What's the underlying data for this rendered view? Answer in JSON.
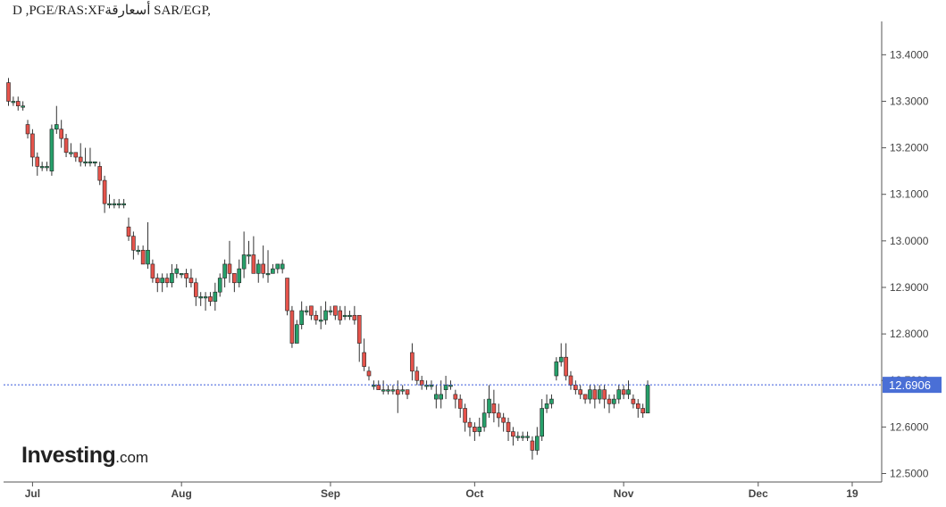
{
  "header": {
    "title": "D ,PGE/RAS:XFأسعارقة SAR/EGP,"
  },
  "branding": {
    "logo_main": "Investing",
    "logo_domain": ".com"
  },
  "colors": {
    "up": "#26a06a",
    "down": "#e5534b",
    "last_price_line": "#3b5bdb",
    "last_price_label_bg": "#4a6fd6",
    "axis_text": "#444444",
    "axis_line": "#555555"
  },
  "chart_data": {
    "type": "candlestick",
    "interval": "D",
    "ylim": [
      12.47,
      13.47
    ],
    "y_ticks": [
      "13.4000",
      "13.3000",
      "13.2000",
      "13.1000",
      "13.0000",
      "12.9000",
      "12.8000",
      "12.7000",
      "12.6000",
      "12.5000"
    ],
    "y_tick_values": [
      13.4,
      13.3,
      13.2,
      13.1,
      13.0,
      12.9,
      12.8,
      12.7,
      12.6,
      12.5
    ],
    "x_ticks": [
      {
        "label": "Jul",
        "index": 5
      },
      {
        "label": "Aug",
        "index": 36
      },
      {
        "label": "Sep",
        "index": 67
      },
      {
        "label": "Oct",
        "index": 97
      },
      {
        "label": "Nov",
        "index": 128
      },
      {
        "label": "Dec",
        "index": 156
      },
      {
        "label": "19",
        "index": 175
      }
    ],
    "last_price": 12.6906,
    "last_price_label": "12.6906",
    "candles": [
      [
        13.34,
        13.3,
        13.35,
        13.29
      ],
      [
        13.3,
        13.3,
        13.31,
        13.29
      ],
      [
        13.3,
        13.29,
        13.31,
        13.28
      ],
      [
        13.29,
        13.29,
        13.3,
        13.28
      ],
      [
        13.25,
        13.23,
        13.26,
        13.22
      ],
      [
        13.23,
        13.18,
        13.24,
        13.16
      ],
      [
        13.18,
        13.16,
        13.19,
        13.14
      ],
      [
        13.16,
        13.16,
        13.17,
        13.15
      ],
      [
        13.16,
        13.16,
        13.17,
        13.15
      ],
      [
        13.15,
        13.24,
        13.25,
        13.14
      ],
      [
        13.24,
        13.25,
        13.29,
        13.23
      ],
      [
        13.24,
        13.22,
        13.26,
        13.2
      ],
      [
        13.22,
        13.19,
        13.23,
        13.18
      ],
      [
        13.19,
        13.19,
        13.21,
        13.18
      ],
      [
        13.19,
        13.18,
        13.19,
        13.17
      ],
      [
        13.18,
        13.17,
        13.21,
        13.16
      ],
      [
        13.17,
        13.17,
        13.2,
        13.16
      ],
      [
        13.17,
        13.17,
        13.2,
        13.16
      ],
      [
        13.17,
        13.17,
        13.17,
        13.16
      ],
      [
        13.16,
        13.13,
        13.17,
        13.12
      ],
      [
        13.13,
        13.08,
        13.14,
        13.06
      ],
      [
        13.08,
        13.08,
        13.1,
        13.07
      ],
      [
        13.08,
        13.08,
        13.09,
        13.07
      ],
      [
        13.08,
        13.08,
        13.09,
        13.07
      ],
      [
        13.08,
        13.08,
        13.09,
        13.07
      ],
      [
        13.03,
        13.01,
        13.05,
        13.0
      ],
      [
        13.01,
        12.98,
        13.02,
        12.96
      ],
      [
        12.98,
        12.98,
        12.99,
        12.97
      ],
      [
        12.98,
        12.95,
        12.99,
        12.95
      ],
      [
        12.95,
        12.98,
        13.04,
        12.94
      ],
      [
        12.95,
        12.92,
        12.96,
        12.91
      ],
      [
        12.92,
        12.91,
        12.93,
        12.89
      ],
      [
        12.91,
        12.92,
        12.93,
        12.89
      ],
      [
        12.92,
        12.91,
        12.93,
        12.9
      ],
      [
        12.91,
        12.93,
        12.95,
        12.9
      ],
      [
        12.93,
        12.94,
        12.95,
        12.92
      ],
      [
        12.93,
        12.93,
        12.93,
        12.92
      ],
      [
        12.93,
        12.92,
        12.94,
        12.9
      ],
      [
        12.92,
        12.91,
        12.94,
        12.9
      ],
      [
        12.91,
        12.88,
        12.92,
        12.86
      ],
      [
        12.88,
        12.88,
        12.89,
        12.86
      ],
      [
        12.88,
        12.88,
        12.89,
        12.85
      ],
      [
        12.88,
        12.87,
        12.89,
        12.86
      ],
      [
        12.87,
        12.89,
        12.91,
        12.85
      ],
      [
        12.89,
        12.92,
        12.93,
        12.88
      ],
      [
        12.92,
        12.95,
        12.96,
        12.9
      ],
      [
        12.95,
        12.93,
        13.0,
        12.91
      ],
      [
        12.93,
        12.91,
        12.93,
        12.89
      ],
      [
        12.91,
        12.94,
        12.96,
        12.9
      ],
      [
        12.94,
        12.97,
        13.02,
        12.92
      ],
      [
        12.97,
        12.97,
        13.0,
        12.95
      ],
      [
        12.97,
        12.93,
        13.01,
        12.93
      ],
      [
        12.93,
        12.95,
        12.96,
        12.91
      ],
      [
        12.95,
        12.93,
        12.99,
        12.92
      ],
      [
        12.93,
        12.93,
        12.98,
        12.91
      ],
      [
        12.93,
        12.94,
        12.95,
        12.93
      ],
      [
        12.94,
        12.95,
        12.95,
        12.93
      ],
      [
        12.94,
        12.95,
        12.96,
        12.93
      ],
      [
        12.92,
        12.85,
        12.92,
        12.84
      ],
      [
        12.85,
        12.78,
        12.86,
        12.77
      ],
      [
        12.78,
        12.82,
        12.83,
        12.78
      ],
      [
        12.82,
        12.85,
        12.87,
        12.81
      ],
      [
        12.85,
        12.85,
        12.86,
        12.84
      ],
      [
        12.86,
        12.84,
        12.86,
        12.83
      ],
      [
        12.84,
        12.83,
        12.85,
        12.82
      ],
      [
        12.83,
        12.83,
        12.86,
        12.81
      ],
      [
        12.83,
        12.85,
        12.87,
        12.82
      ],
      [
        12.85,
        12.85,
        12.86,
        12.84
      ],
      [
        12.86,
        12.84,
        12.86,
        12.83
      ],
      [
        12.85,
        12.83,
        12.86,
        12.82
      ],
      [
        12.84,
        12.84,
        12.86,
        12.83
      ],
      [
        12.84,
        12.84,
        12.85,
        12.83
      ],
      [
        12.84,
        12.83,
        12.86,
        12.82
      ],
      [
        12.84,
        12.78,
        12.84,
        12.74
      ],
      [
        12.76,
        12.73,
        12.79,
        12.72
      ],
      [
        12.72,
        12.71,
        12.73,
        12.7
      ],
      [
        12.69,
        12.69,
        12.7,
        12.68
      ],
      [
        12.69,
        12.68,
        12.7,
        12.68
      ],
      [
        12.68,
        12.68,
        12.7,
        12.67
      ],
      [
        12.68,
        12.68,
        12.69,
        12.67
      ],
      [
        12.68,
        12.68,
        12.69,
        12.67
      ],
      [
        12.68,
        12.67,
        12.7,
        12.63
      ],
      [
        12.68,
        12.68,
        12.69,
        12.67
      ],
      [
        12.68,
        12.67,
        12.68,
        12.66
      ],
      [
        12.76,
        12.72,
        12.78,
        12.7
      ],
      [
        12.72,
        12.7,
        12.73,
        12.69
      ],
      [
        12.7,
        12.69,
        12.71,
        12.68
      ],
      [
        12.69,
        12.69,
        12.7,
        12.68
      ],
      [
        12.69,
        12.69,
        12.7,
        12.68
      ],
      [
        12.66,
        12.67,
        12.69,
        12.64
      ],
      [
        12.66,
        12.67,
        12.7,
        12.64
      ],
      [
        12.68,
        12.69,
        12.71,
        12.66
      ],
      [
        12.69,
        12.69,
        12.7,
        12.68
      ],
      [
        12.67,
        12.66,
        12.68,
        12.64
      ],
      [
        12.66,
        12.64,
        12.67,
        12.62
      ],
      [
        12.64,
        12.61,
        12.65,
        12.59
      ],
      [
        12.61,
        12.6,
        12.62,
        12.58
      ],
      [
        12.6,
        12.59,
        12.61,
        12.57
      ],
      [
        12.59,
        12.6,
        12.62,
        12.58
      ],
      [
        12.6,
        12.63,
        12.66,
        12.59
      ],
      [
        12.63,
        12.66,
        12.69,
        12.62
      ],
      [
        12.65,
        12.63,
        12.68,
        12.61
      ],
      [
        12.63,
        12.62,
        12.65,
        12.6
      ],
      [
        12.62,
        12.61,
        12.63,
        12.59
      ],
      [
        12.61,
        12.59,
        12.62,
        12.57
      ],
      [
        12.59,
        12.58,
        12.6,
        12.56
      ],
      [
        12.58,
        12.58,
        12.59,
        12.57
      ],
      [
        12.58,
        12.58,
        12.59,
        12.57
      ],
      [
        12.58,
        12.58,
        12.59,
        12.57
      ],
      [
        12.57,
        12.55,
        12.58,
        12.53
      ],
      [
        12.55,
        12.58,
        12.6,
        12.54
      ],
      [
        12.58,
        12.64,
        12.66,
        12.57
      ],
      [
        12.64,
        12.65,
        12.67,
        12.63
      ],
      [
        12.65,
        12.66,
        12.67,
        12.64
      ],
      [
        12.71,
        12.74,
        12.75,
        12.7
      ],
      [
        12.74,
        12.75,
        12.78,
        12.73
      ],
      [
        12.75,
        12.71,
        12.78,
        12.7
      ],
      [
        12.71,
        12.69,
        12.72,
        12.68
      ],
      [
        12.69,
        12.68,
        12.7,
        12.67
      ],
      [
        12.68,
        12.67,
        12.69,
        12.66
      ],
      [
        12.67,
        12.66,
        12.67,
        12.65
      ],
      [
        12.66,
        12.68,
        12.69,
        12.65
      ],
      [
        12.68,
        12.66,
        12.69,
        12.64
      ],
      [
        12.66,
        12.68,
        12.69,
        12.65
      ],
      [
        12.68,
        12.66,
        12.69,
        12.64
      ],
      [
        12.66,
        12.65,
        12.67,
        12.63
      ],
      [
        12.65,
        12.66,
        12.67,
        12.64
      ],
      [
        12.66,
        12.68,
        12.69,
        12.65
      ],
      [
        12.68,
        12.67,
        12.69,
        12.66
      ],
      [
        12.67,
        12.68,
        12.7,
        12.66
      ],
      [
        12.66,
        12.65,
        12.67,
        12.64
      ],
      [
        12.65,
        12.64,
        12.66,
        12.62
      ],
      [
        12.64,
        12.63,
        12.65,
        12.62
      ],
      [
        12.63,
        12.69,
        12.7,
        12.63
      ]
    ]
  }
}
